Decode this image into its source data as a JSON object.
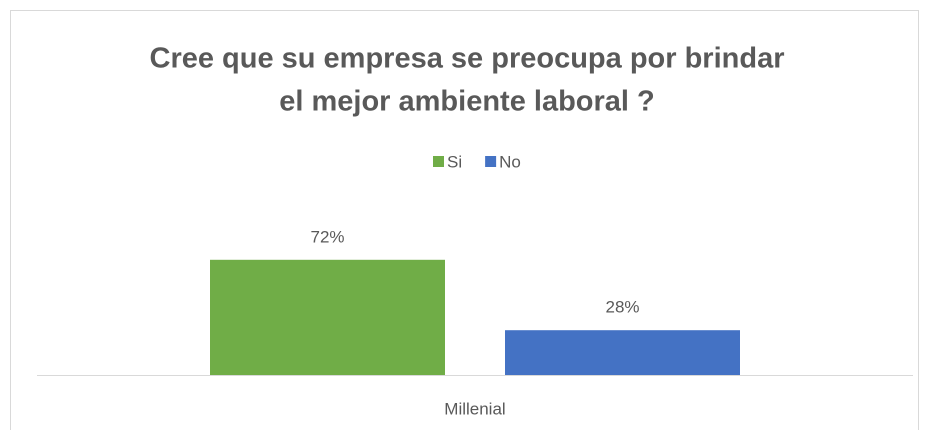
{
  "chart_data": {
    "type": "bar",
    "title": [
      "Cree que su empresa se preocupa por brindar",
      "el mejor ambiente laboral ?"
    ],
    "categories": [
      "Millenial"
    ],
    "series": [
      {
        "name": "Si",
        "color": "#70ad47",
        "values": [
          72
        ],
        "value_labels": [
          "72%"
        ]
      },
      {
        "name": "No",
        "color": "#4472c4",
        "values": [
          28
        ],
        "value_labels": [
          "28%"
        ]
      }
    ],
    "ylim": [
      0,
      80
    ],
    "legend": "top"
  }
}
